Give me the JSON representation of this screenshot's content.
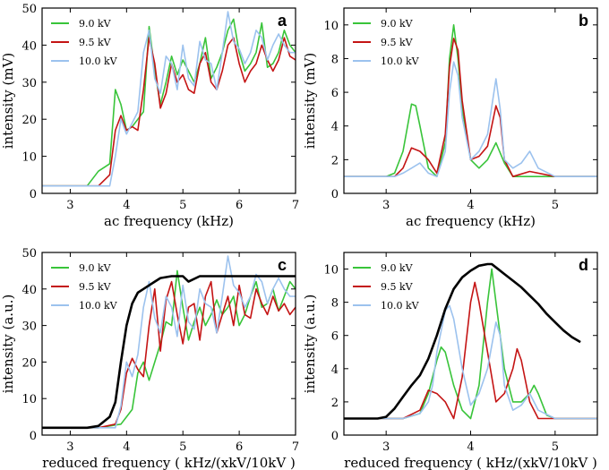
{
  "colors": {
    "green": "#39c43a",
    "red": "#c41414",
    "blue": "#9cc2ee",
    "black": "#000000"
  },
  "chart_data": [
    {
      "type": "line",
      "panel": "a",
      "xlabel": "ac  frequency (kHz)",
      "ylabel": "intensity  (mV)",
      "xlim": [
        2.5,
        7
      ],
      "ylim": [
        0,
        50
      ],
      "xticks": [
        "3",
        "4",
        "5",
        "6",
        "7"
      ],
      "yticks": [
        "0",
        "10",
        "20",
        "30",
        "40",
        "50"
      ],
      "legend": [
        "9.0 kV",
        "9.5 kV",
        "10.0 kV"
      ],
      "series": [
        {
          "name": "9.0 kV",
          "x": [
            2.5,
            3.0,
            3.3,
            3.5,
            3.7,
            3.8,
            3.9,
            4.0,
            4.1,
            4.2,
            4.3,
            4.4,
            4.5,
            4.6,
            4.7,
            4.8,
            4.9,
            5.0,
            5.1,
            5.2,
            5.3,
            5.4,
            5.5,
            5.6,
            5.7,
            5.8,
            5.9,
            6.0,
            6.1,
            6.2,
            6.3,
            6.4,
            6.5,
            6.6,
            6.7,
            6.8,
            6.9,
            7.0
          ],
          "y": [
            2,
            2,
            2,
            6,
            8,
            28,
            24,
            17,
            18,
            20,
            22,
            45,
            33,
            24,
            30,
            37,
            32,
            36,
            33,
            30,
            35,
            42,
            31,
            34,
            38,
            44,
            47,
            38,
            33,
            35,
            38,
            46,
            34,
            35,
            38,
            44,
            40,
            38
          ]
        },
        {
          "name": "9.5 kV",
          "x": [
            2.5,
            3.0,
            3.3,
            3.5,
            3.7,
            3.8,
            3.9,
            4.0,
            4.1,
            4.2,
            4.3,
            4.4,
            4.5,
            4.6,
            4.7,
            4.8,
            4.9,
            5.0,
            5.1,
            5.2,
            5.3,
            5.4,
            5.5,
            5.6,
            5.7,
            5.8,
            5.9,
            6.0,
            6.1,
            6.2,
            6.3,
            6.4,
            6.5,
            6.6,
            6.7,
            6.8,
            6.9,
            7.0
          ],
          "y": [
            2,
            2,
            2,
            2,
            5,
            17,
            21,
            17,
            18,
            17,
            28,
            42,
            35,
            23,
            27,
            35,
            30,
            32,
            28,
            27,
            35,
            38,
            30,
            28,
            33,
            40,
            42,
            35,
            30,
            33,
            35,
            40,
            36,
            33,
            36,
            42,
            37,
            36
          ]
        },
        {
          "name": "10.0 kV",
          "x": [
            2.5,
            3.0,
            3.3,
            3.5,
            3.7,
            3.8,
            3.9,
            4.0,
            4.1,
            4.2,
            4.3,
            4.4,
            4.5,
            4.6,
            4.7,
            4.8,
            4.9,
            5.0,
            5.1,
            5.2,
            5.3,
            5.4,
            5.5,
            5.6,
            5.7,
            5.8,
            5.9,
            6.0,
            6.1,
            6.2,
            6.3,
            6.4,
            6.5,
            6.6,
            6.7,
            6.8,
            6.9,
            7.0
          ],
          "y": [
            2,
            2,
            2,
            2,
            2,
            10,
            20,
            16,
            19,
            22,
            38,
            44,
            31,
            27,
            37,
            35,
            28,
            40,
            31,
            29,
            41,
            36,
            35,
            28,
            38,
            49,
            41,
            39,
            35,
            38,
            44,
            42,
            36,
            40,
            43,
            40,
            38,
            38
          ]
        }
      ]
    },
    {
      "type": "line",
      "panel": "b",
      "xlabel": "ac frequency (kHz)",
      "ylabel": "intensity  (mV)",
      "xlim": [
        2.5,
        5.5
      ],
      "ylim": [
        0,
        11
      ],
      "xticks": [
        "3",
        "4",
        "5"
      ],
      "yticks": [
        "0",
        "2",
        "4",
        "6",
        "8",
        "10"
      ],
      "legend": [
        "9.0 kV",
        "9.5 kV",
        "10.0 kV"
      ],
      "series": [
        {
          "name": "9.0 kV",
          "x": [
            2.5,
            2.8,
            3.0,
            3.1,
            3.2,
            3.3,
            3.35,
            3.4,
            3.5,
            3.6,
            3.7,
            3.75,
            3.8,
            3.85,
            3.9,
            4.0,
            4.1,
            4.2,
            4.3,
            4.4,
            4.5,
            4.7,
            5.0,
            5.5
          ],
          "y": [
            1,
            1,
            1,
            1.2,
            2.5,
            5.3,
            5.2,
            4,
            1.5,
            1,
            3,
            8,
            10,
            8,
            5,
            2,
            1.5,
            2,
            3,
            1.8,
            1,
            1,
            1,
            1
          ]
        },
        {
          "name": "9.5 kV",
          "x": [
            2.5,
            2.8,
            3.0,
            3.1,
            3.2,
            3.3,
            3.4,
            3.5,
            3.6,
            3.7,
            3.75,
            3.8,
            3.85,
            3.9,
            4.0,
            4.1,
            4.2,
            4.3,
            4.35,
            4.4,
            4.5,
            4.7,
            5.0,
            5.5
          ],
          "y": [
            1,
            1,
            1,
            1,
            1.5,
            2.7,
            2.5,
            2,
            1.2,
            3.5,
            7.5,
            9.2,
            8.5,
            5.5,
            2,
            2.2,
            2.8,
            5.2,
            4.5,
            2,
            1,
            1.3,
            1,
            1
          ]
        },
        {
          "name": "10.0 kV",
          "x": [
            2.5,
            2.8,
            3.0,
            3.1,
            3.2,
            3.3,
            3.4,
            3.5,
            3.6,
            3.7,
            3.75,
            3.8,
            3.85,
            3.9,
            4.0,
            4.1,
            4.2,
            4.3,
            4.35,
            4.4,
            4.5,
            4.6,
            4.7,
            4.8,
            5.0,
            5.5
          ],
          "y": [
            1,
            1,
            1,
            1,
            1.2,
            1.5,
            1.8,
            1.2,
            1,
            2.5,
            6,
            7.8,
            7,
            4.5,
            2,
            2.5,
            3.5,
            6.8,
            5,
            2,
            1.5,
            1.8,
            2.5,
            1.5,
            1,
            1
          ]
        }
      ]
    },
    {
      "type": "line",
      "panel": "c",
      "xlabel": "reduced frequency ( kHz/(xkV/10kV )",
      "ylabel": "intensity  (a.u.)",
      "xlim": [
        2.5,
        7
      ],
      "ylim": [
        0,
        50
      ],
      "xticks": [
        "3",
        "4",
        "5",
        "6",
        "7"
      ],
      "yticks": [
        "0",
        "10",
        "20",
        "30",
        "40",
        "50"
      ],
      "legend": [
        "9.0 kV",
        "9.5 kV",
        "10.0 kV"
      ],
      "series": [
        {
          "name": "9.0 kV",
          "x": [
            2.5,
            3.5,
            3.9,
            4.0,
            4.1,
            4.2,
            4.3,
            4.4,
            4.5,
            4.6,
            4.7,
            4.8,
            4.9,
            5.0,
            5.1,
            5.2,
            5.3,
            5.4,
            5.5,
            5.6,
            5.7,
            5.8,
            5.9,
            6.0,
            6.1,
            6.2,
            6.3,
            6.4,
            6.5,
            6.6,
            6.7,
            6.8,
            6.9,
            7.0
          ],
          "y": [
            2,
            2,
            3,
            5,
            7,
            17,
            20,
            15,
            20,
            25,
            31,
            30,
            45,
            35,
            26,
            31,
            35,
            30,
            33,
            37,
            33,
            35,
            38,
            30,
            33,
            38,
            42,
            35,
            36,
            40,
            34,
            38,
            42,
            40
          ]
        },
        {
          "name": "9.5 kV",
          "x": [
            2.5,
            3.5,
            3.8,
            3.9,
            4.0,
            4.1,
            4.2,
            4.3,
            4.4,
            4.5,
            4.6,
            4.7,
            4.8,
            4.9,
            5.0,
            5.1,
            5.2,
            5.3,
            5.4,
            5.5,
            5.6,
            5.7,
            5.8,
            5.9,
            6.0,
            6.1,
            6.2,
            6.3,
            6.4,
            6.5,
            6.6,
            6.7,
            6.8,
            6.9,
            7.0
          ],
          "y": [
            2,
            2,
            3,
            7,
            17,
            21,
            18,
            16,
            30,
            40,
            23,
            37,
            42,
            33,
            25,
            35,
            36,
            26,
            38,
            42,
            28,
            33,
            38,
            30,
            41,
            33,
            32,
            40,
            36,
            33,
            38,
            34,
            36,
            33,
            35
          ]
        },
        {
          "name": "10.0 kV",
          "x": [
            2.5,
            3.5,
            3.8,
            3.9,
            4.0,
            4.1,
            4.2,
            4.3,
            4.4,
            4.5,
            4.6,
            4.7,
            4.8,
            4.9,
            5.0,
            5.1,
            5.2,
            5.3,
            5.4,
            5.5,
            5.6,
            5.7,
            5.8,
            5.9,
            6.0,
            6.1,
            6.2,
            6.3,
            6.4,
            6.5,
            6.6,
            6.7,
            6.8,
            6.9,
            7.0
          ],
          "y": [
            2,
            2,
            2,
            8,
            20,
            16,
            22,
            35,
            42,
            32,
            28,
            38,
            35,
            27,
            41,
            31,
            29,
            40,
            36,
            35,
            28,
            38,
            49,
            41,
            39,
            35,
            38,
            44,
            42,
            36,
            40,
            43,
            40,
            38,
            38
          ]
        },
        {
          "name": "envelope",
          "x": [
            2.5,
            3.3,
            3.5,
            3.7,
            3.8,
            3.9,
            4.0,
            4.1,
            4.2,
            4.3,
            4.4,
            4.5,
            4.6,
            4.8,
            5.0,
            5.1,
            5.3,
            5.5,
            6.0,
            7.0
          ],
          "y": [
            2,
            2,
            2.5,
            5,
            9,
            20,
            30,
            36,
            39,
            40,
            41,
            42,
            43,
            43.5,
            43.5,
            42,
            43.5,
            43.5,
            43.5,
            43.5
          ]
        }
      ]
    },
    {
      "type": "line",
      "panel": "d",
      "xlabel": "reduced frequency ( kHz/(xkV/10kV )",
      "ylabel": "intensity  (a.u.)",
      "xlim": [
        2.5,
        5.5
      ],
      "ylim": [
        0,
        11
      ],
      "xticks": [
        "3",
        "4",
        "5"
      ],
      "yticks": [
        "0",
        "2",
        "4",
        "6",
        "8",
        "10"
      ],
      "legend": [
        "9.0 kV",
        "9.5 kV",
        "10.0 kV"
      ],
      "series": [
        {
          "name": "9.0 kV",
          "x": [
            2.5,
            3.0,
            3.2,
            3.4,
            3.5,
            3.6,
            3.65,
            3.7,
            3.8,
            3.9,
            4.0,
            4.1,
            4.2,
            4.25,
            4.3,
            4.4,
            4.5,
            4.6,
            4.7,
            4.75,
            4.8,
            4.9,
            5.0,
            5.5
          ],
          "y": [
            1,
            1,
            1,
            1.3,
            2.5,
            4.5,
            5.3,
            5,
            3,
            1.5,
            1,
            3,
            8,
            10,
            8,
            4,
            2,
            2,
            2.5,
            3,
            2.5,
            1.2,
            1,
            1
          ]
        },
        {
          "name": "9.5 kV",
          "x": [
            2.5,
            3.0,
            3.2,
            3.4,
            3.5,
            3.6,
            3.7,
            3.8,
            3.9,
            4.0,
            4.05,
            4.1,
            4.2,
            4.3,
            4.4,
            4.5,
            4.55,
            4.6,
            4.7,
            4.8,
            5.0,
            5.5
          ],
          "y": [
            1,
            1,
            1,
            1.5,
            2.7,
            2.5,
            2,
            1,
            3.5,
            8,
            9.2,
            8,
            5,
            2,
            2.5,
            4,
            5.2,
            4.5,
            2,
            1,
            1,
            1
          ]
        },
        {
          "name": "10.0 kV",
          "x": [
            2.5,
            3.0,
            3.2,
            3.4,
            3.5,
            3.55,
            3.6,
            3.7,
            3.75,
            3.8,
            3.9,
            4.0,
            4.1,
            4.2,
            4.3,
            4.35,
            4.4,
            4.5,
            4.6,
            4.7,
            4.8,
            5.0,
            5.5
          ],
          "y": [
            1,
            1,
            1,
            1.3,
            2,
            3,
            5,
            7.5,
            7.8,
            7,
            4,
            1.8,
            2.5,
            4,
            6.8,
            6,
            3,
            1.5,
            1.8,
            2.5,
            1.5,
            1,
            1
          ]
        },
        {
          "name": "envelope",
          "x": [
            2.5,
            2.9,
            3.0,
            3.1,
            3.2,
            3.3,
            3.4,
            3.5,
            3.6,
            3.7,
            3.8,
            3.9,
            4.0,
            4.1,
            4.2,
            4.25,
            4.3,
            4.4,
            4.5,
            4.6,
            4.7,
            4.8,
            4.9,
            5.0,
            5.1,
            5.2,
            5.3
          ],
          "y": [
            1,
            1,
            1.1,
            1.6,
            2.3,
            3.0,
            3.6,
            4.6,
            6.0,
            7.6,
            8.8,
            9.5,
            9.9,
            10.2,
            10.3,
            10.3,
            10.1,
            9.7,
            9.3,
            8.9,
            8.4,
            7.9,
            7.3,
            6.8,
            6.3,
            5.9,
            5.6
          ]
        }
      ]
    }
  ]
}
